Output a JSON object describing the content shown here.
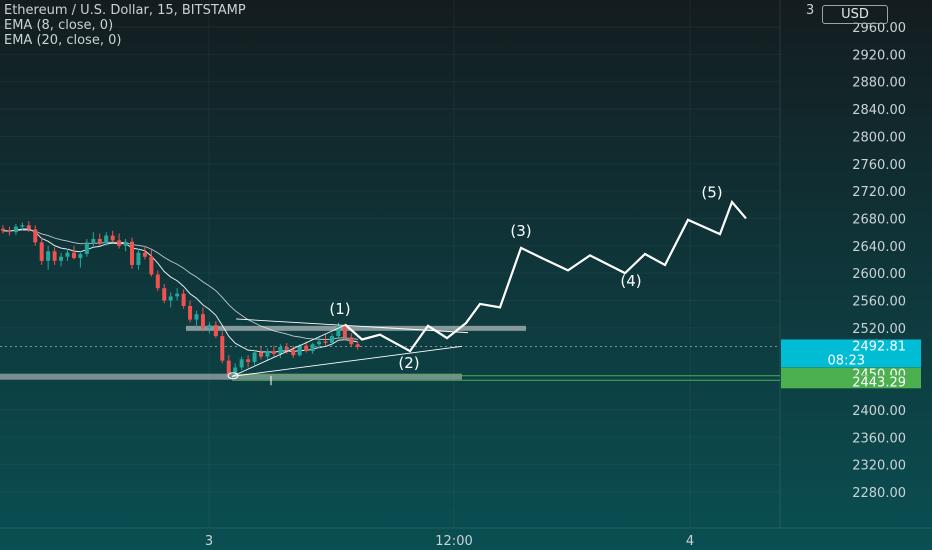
{
  "legend": {
    "symbol": "Ethereum / U.S. Dollar, 15, BITSTAMP",
    "ema8": "EMA (8, close, 0)",
    "ema20": "EMA (20, close, 0)"
  },
  "currency_button": "USD",
  "axis_top_partial": "3",
  "colors": {
    "up": "#26a69a",
    "down": "#ef5350",
    "wick": "#c7cfd2",
    "drawing": "#ffffff",
    "zone": "#b0b8ba",
    "last_price": "#00bcd4",
    "level": "#4caf50"
  },
  "chart_data": {
    "type": "candlestick",
    "ylim": [
      2240,
      3000
    ],
    "y_ticks": [
      "2960.00",
      "2920.00",
      "2880.00",
      "2840.00",
      "2800.00",
      "2760.00",
      "2720.00",
      "2680.00",
      "2640.00",
      "2600.00",
      "2560.00",
      "2520.00",
      "2400.00",
      "2360.00",
      "2320.00",
      "2280.00"
    ],
    "x_ticks": [
      "3",
      "12:00",
      "4"
    ],
    "price_labels": [
      {
        "name": "last-price",
        "value": "2492.81",
        "sub": "08:23"
      },
      {
        "name": "level-2450",
        "value": "2450.00"
      },
      {
        "name": "level-2443",
        "value": "2443.29"
      }
    ],
    "wave_labels": [
      "(1)",
      "(2)",
      "(3)",
      "(4)",
      "(5)"
    ],
    "candles": [
      [
        2665,
        2670,
        2658,
        2662
      ],
      [
        2662,
        2668,
        2655,
        2660
      ],
      [
        2660,
        2672,
        2656,
        2668
      ],
      [
        2668,
        2674,
        2662,
        2670
      ],
      [
        2670,
        2676,
        2660,
        2664
      ],
      [
        2664,
        2670,
        2640,
        2645
      ],
      [
        2645,
        2652,
        2612,
        2618
      ],
      [
        2618,
        2640,
        2605,
        2632
      ],
      [
        2632,
        2638,
        2612,
        2618
      ],
      [
        2618,
        2630,
        2610,
        2624
      ],
      [
        2624,
        2636,
        2618,
        2630
      ],
      [
        2630,
        2640,
        2620,
        2622
      ],
      [
        2622,
        2632,
        2608,
        2628
      ],
      [
        2628,
        2650,
        2624,
        2645
      ],
      [
        2645,
        2660,
        2638,
        2650
      ],
      [
        2650,
        2658,
        2640,
        2644
      ],
      [
        2644,
        2660,
        2640,
        2655
      ],
      [
        2655,
        2662,
        2645,
        2648
      ],
      [
        2648,
        2658,
        2636,
        2640
      ],
      [
        2640,
        2650,
        2632,
        2646
      ],
      [
        2646,
        2652,
        2606,
        2612
      ],
      [
        2612,
        2636,
        2605,
        2630
      ],
      [
        2630,
        2640,
        2620,
        2624
      ],
      [
        2624,
        2634,
        2595,
        2598
      ],
      [
        2598,
        2604,
        2574,
        2578
      ],
      [
        2578,
        2584,
        2556,
        2560
      ],
      [
        2560,
        2572,
        2550,
        2566
      ],
      [
        2566,
        2578,
        2560,
        2570
      ],
      [
        2570,
        2576,
        2548,
        2552
      ],
      [
        2552,
        2560,
        2528,
        2532
      ],
      [
        2532,
        2545,
        2520,
        2540
      ],
      [
        2540,
        2550,
        2515,
        2520
      ],
      [
        2520,
        2528,
        2512,
        2524
      ],
      [
        2524,
        2530,
        2505,
        2508
      ],
      [
        2508,
        2515,
        2468,
        2472
      ],
      [
        2472,
        2480,
        2448,
        2452
      ],
      [
        2452,
        2468,
        2445,
        2462
      ],
      [
        2462,
        2478,
        2458,
        2474
      ],
      [
        2474,
        2480,
        2462,
        2470
      ],
      [
        2470,
        2488,
        2466,
        2484
      ],
      [
        2484,
        2492,
        2474,
        2478
      ],
      [
        2478,
        2490,
        2472,
        2486
      ],
      [
        2486,
        2494,
        2478,
        2482
      ],
      [
        2482,
        2496,
        2476,
        2492
      ],
      [
        2492,
        2498,
        2482,
        2488
      ],
      [
        2488,
        2494,
        2476,
        2480
      ],
      [
        2480,
        2496,
        2478,
        2494
      ],
      [
        2494,
        2500,
        2484,
        2486
      ],
      [
        2486,
        2498,
        2482,
        2496
      ],
      [
        2496,
        2506,
        2490,
        2500
      ],
      [
        2500,
        2510,
        2494,
        2498
      ],
      [
        2498,
        2512,
        2494,
        2508
      ],
      [
        2508,
        2528,
        2504,
        2522
      ],
      [
        2522,
        2526,
        2502,
        2506
      ],
      [
        2506,
        2512,
        2492,
        2496
      ],
      [
        2496,
        2500,
        2488,
        2492
      ]
    ]
  }
}
